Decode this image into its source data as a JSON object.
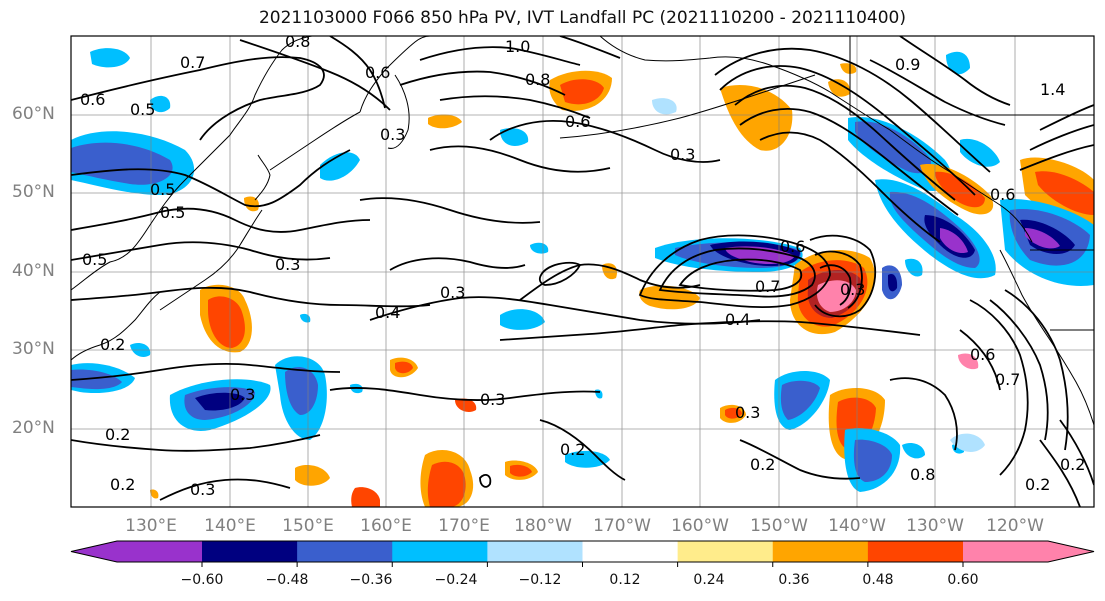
{
  "title": "2021103000 F066 850 hPa PV, IVT Landfall PC (2021110200 - 2021110400)",
  "lat_labels": [
    "60°N",
    "50°N",
    "40°N",
    "30°N",
    "20°N"
  ],
  "lon_labels": [
    "130°E",
    "140°E",
    "150°E",
    "160°E",
    "170°E",
    "180°W",
    "170°W",
    "160°W",
    "150°W",
    "140°W",
    "130°W",
    "120°W"
  ],
  "colorbar": {
    "colors": [
      "#9932cc",
      "#000080",
      "#3a5fcd",
      "#00bfff",
      "#b0e2ff",
      "#ffffff",
      "#ffec8b",
      "#ffa500",
      "#ff4500",
      "#b22222",
      "#ff82ab"
    ],
    "tick_labels": [
      "−0.60",
      "−0.48",
      "−0.36",
      "−0.24",
      "−0.12",
      "0.12",
      "0.24",
      "0.36",
      "0.48",
      "0.60"
    ]
  },
  "contour_labels": [
    "0.8",
    "0.7",
    "0.6",
    "0.5",
    "1.0",
    "0.8",
    "0.6",
    "0.6",
    "0.3",
    "0.3",
    "0.5",
    "0.5",
    "0.3",
    "0.5",
    "0.3",
    "0.4",
    "0.4",
    "0.3",
    "0.2",
    "0.3",
    "0.3",
    "0.2",
    "0.2",
    "0.3",
    "0.2",
    "0.2",
    "0.7",
    "0.6",
    "0.2",
    "0.2",
    "1.4",
    "0.6",
    "0.7",
    "0.6",
    "0.8",
    "0.9",
    "0.3"
  ]
}
